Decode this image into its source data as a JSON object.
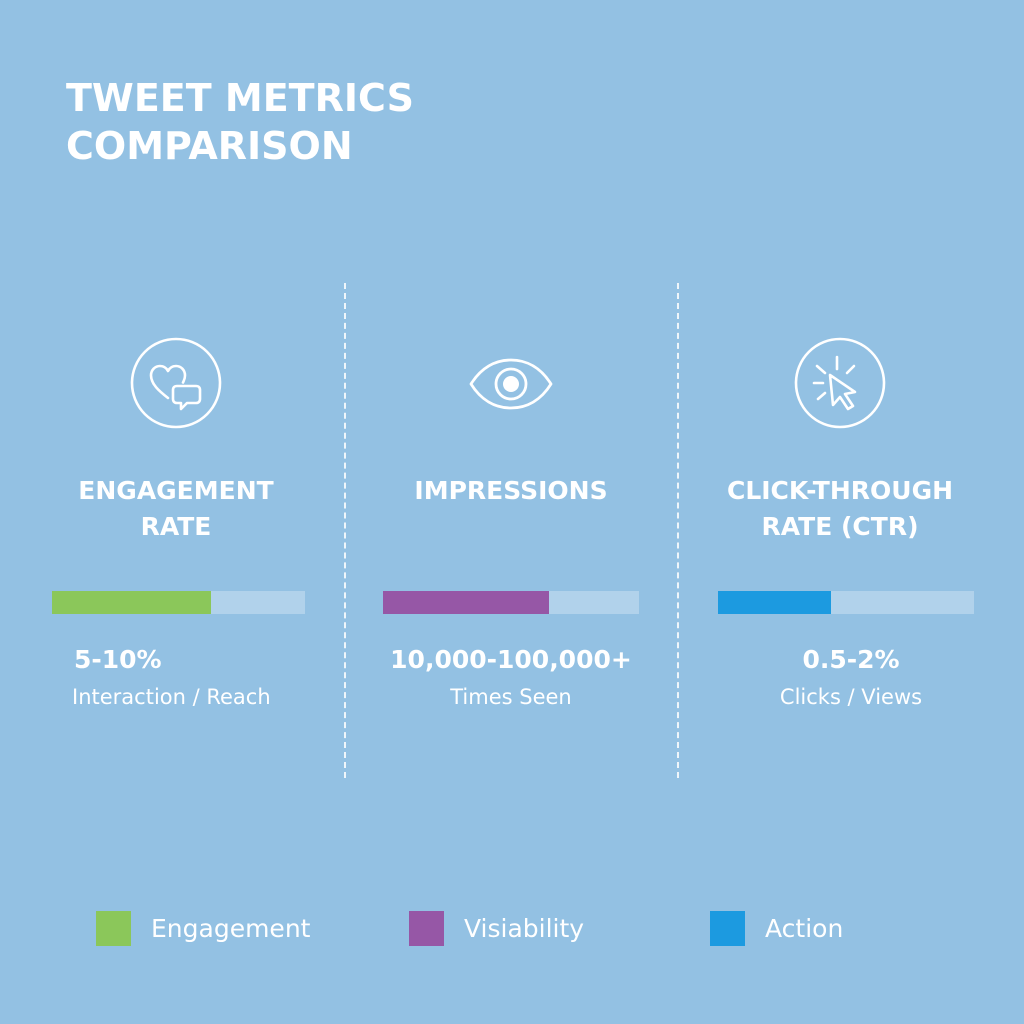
{
  "title": {
    "line1": "TWEET METRICS",
    "line2": "COMPARISON"
  },
  "metrics": [
    {
      "name_line1": "ENGAGEMENT",
      "name_line2": "RATE",
      "value": "5-10%",
      "description": "Interaction / Reach",
      "bar_fill_fraction": 0.63,
      "color": "#8bc75a",
      "icon": "heart-chat-icon"
    },
    {
      "name_line1": "IMPRESSIONS",
      "name_line2": "",
      "value": "10,000-100,000+",
      "description": "Times Seen",
      "bar_fill_fraction": 0.65,
      "color": "#9657a6",
      "icon": "eye-icon"
    },
    {
      "name_line1": "CLICK-THROUGH",
      "name_line2": "RATE (CTR)",
      "value": "0.5-2%",
      "description": "Clicks / Views",
      "bar_fill_fraction": 0.44,
      "color": "#1c9ae0",
      "icon": "cursor-click-icon"
    }
  ],
  "legend": [
    {
      "label": "Engagement",
      "color": "#8bc75a"
    },
    {
      "label": "Visiability",
      "color": "#9657a6"
    },
    {
      "label": "Action",
      "color": "#1c9ae0"
    }
  ]
}
